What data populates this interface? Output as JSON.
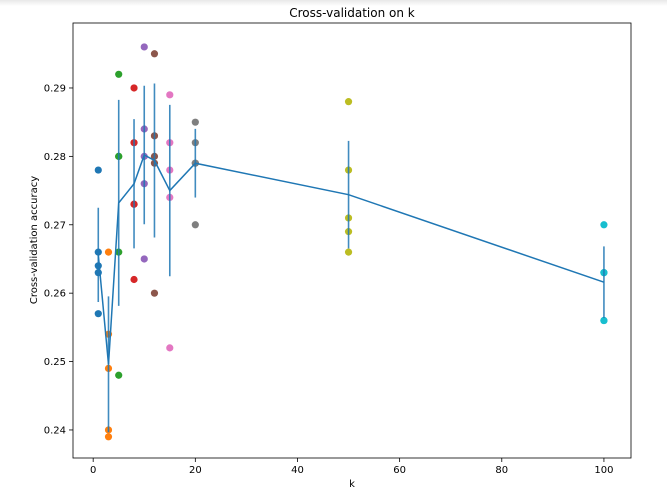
{
  "chart_data": {
    "type": "scatter",
    "title": "Cross-validation on k",
    "xlabel": "k",
    "ylabel": "Cross-validation accuracy",
    "xlim": [
      -3.95,
      105.3
    ],
    "ylim": [
      0.2359,
      0.2995
    ],
    "xticks": [
      0,
      20,
      40,
      60,
      80,
      100
    ],
    "yticks": [
      0.24,
      0.25,
      0.26,
      0.27,
      0.28,
      0.29
    ],
    "ytick_labels": [
      "0.24",
      "0.25",
      "0.26",
      "0.27",
      "0.28",
      "0.29"
    ],
    "grid": false,
    "line_color": "#1f77b4",
    "overlay": "line with error bars showing mean ± std of accuracies per k",
    "series": [
      {
        "k": 1,
        "color": "#1f77b4",
        "values": [
          0.278,
          0.266,
          0.264,
          0.263,
          0.257
        ]
      },
      {
        "k": 3,
        "color": "#ff7f0e",
        "values": [
          0.266,
          0.254,
          0.249,
          0.24,
          0.239
        ]
      },
      {
        "k": 5,
        "color": "#2ca02c",
        "values": [
          0.292,
          0.28,
          0.28,
          0.266,
          0.248
        ]
      },
      {
        "k": 8,
        "color": "#d62728",
        "values": [
          0.29,
          0.282,
          0.273,
          0.273,
          0.262
        ]
      },
      {
        "k": 10,
        "color": "#9467bd",
        "values": [
          0.296,
          0.284,
          0.28,
          0.276,
          0.265
        ]
      },
      {
        "k": 12,
        "color": "#8c564b",
        "values": [
          0.295,
          0.283,
          0.28,
          0.279,
          0.26
        ]
      },
      {
        "k": 15,
        "color": "#e377c2",
        "values": [
          0.289,
          0.282,
          0.278,
          0.274,
          0.252
        ]
      },
      {
        "k": 20,
        "color": "#7f7f7f",
        "values": [
          0.285,
          0.282,
          0.279,
          0.279,
          0.27
        ]
      },
      {
        "k": 50,
        "color": "#bcbd22",
        "values": [
          0.288,
          0.278,
          0.271,
          0.269,
          0.266
        ]
      },
      {
        "k": 100,
        "color": "#17becf",
        "values": [
          0.27,
          0.263,
          0.263,
          0.256,
          0.256
        ]
      }
    ]
  }
}
